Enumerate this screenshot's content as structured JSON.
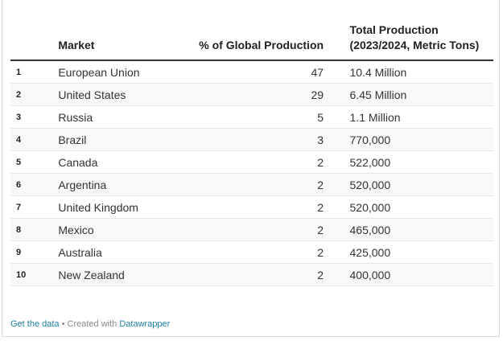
{
  "table": {
    "columns": [
      "",
      "Market",
      "% of Global Production",
      "Total Production (2023/2024, Metric Tons)"
    ],
    "rows": [
      {
        "rank": "1",
        "market": "European Union",
        "pct": "47",
        "total": "10.4 Million"
      },
      {
        "rank": "2",
        "market": "United States",
        "pct": "29",
        "total": "6.45 Million"
      },
      {
        "rank": "3",
        "market": "Russia",
        "pct": "5",
        "total": "1.1 Million"
      },
      {
        "rank": "4",
        "market": "Brazil",
        "pct": "3",
        "total": "770,000"
      },
      {
        "rank": "5",
        "market": "Canada",
        "pct": "2",
        "total": "522,000"
      },
      {
        "rank": "6",
        "market": "Argentina",
        "pct": "2",
        "total": "520,000"
      },
      {
        "rank": "7",
        "market": "United Kingdom",
        "pct": "2",
        "total": "520,000"
      },
      {
        "rank": "8",
        "market": "Mexico",
        "pct": "2",
        "total": "465,000"
      },
      {
        "rank": "9",
        "market": "Australia",
        "pct": "2",
        "total": "425,000"
      },
      {
        "rank": "10",
        "market": "New Zealand",
        "pct": "2",
        "total": "400,000"
      }
    ]
  },
  "footer": {
    "get_data": "Get the data",
    "separator": " • Created with ",
    "datawrapper": "Datawrapper"
  },
  "colors": {
    "link": "#1d81a2",
    "stripe": "#f8f8f8",
    "header_rule": "#333333"
  }
}
